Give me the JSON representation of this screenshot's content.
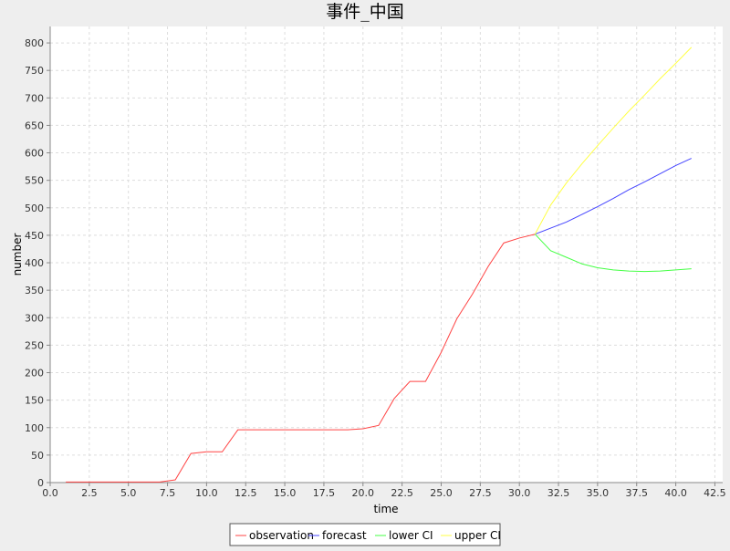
{
  "chart_data": {
    "type": "line",
    "title": "事件_中国",
    "xlabel": "time",
    "ylabel": "number",
    "xlim": [
      0,
      43
    ],
    "ylim": [
      0,
      830
    ],
    "xticks": [
      "0.0",
      "2.5",
      "5.0",
      "7.5",
      "10.0",
      "12.5",
      "15.0",
      "17.5",
      "20.0",
      "22.5",
      "25.0",
      "27.5",
      "30.0",
      "32.5",
      "35.0",
      "37.5",
      "40.0",
      "42.5"
    ],
    "yticks": [
      "0",
      "50",
      "100",
      "150",
      "200",
      "250",
      "300",
      "350",
      "400",
      "450",
      "500",
      "550",
      "600",
      "650",
      "700",
      "750",
      "800"
    ],
    "grid": true,
    "legend_position": "bottom",
    "series": [
      {
        "name": "observation",
        "color": "#ff4444",
        "x": [
          1,
          2,
          3,
          4,
          5,
          6,
          7,
          8,
          9,
          10,
          11,
          12,
          13,
          14,
          15,
          16,
          17,
          18,
          19,
          20,
          21,
          22,
          23,
          24,
          25,
          26,
          27,
          28,
          29,
          30,
          31
        ],
        "y": [
          1,
          1,
          1,
          1,
          1,
          1,
          1,
          5,
          53,
          56,
          56,
          96,
          96,
          96,
          96,
          96,
          96,
          96,
          96,
          98,
          104,
          153,
          184,
          184,
          237,
          298,
          343,
          393,
          436,
          445,
          452
        ]
      },
      {
        "name": "forecast",
        "color": "#4444ff",
        "x": [
          31,
          32,
          33,
          34,
          35,
          36,
          37,
          38,
          39,
          40,
          41
        ],
        "y": [
          452,
          463,
          474,
          488,
          502,
          517,
          533,
          547,
          562,
          577,
          590
        ]
      },
      {
        "name": "lower CI",
        "color": "#44ff44",
        "x": [
          31,
          32,
          33,
          34,
          35,
          36,
          37,
          38,
          39,
          40,
          41
        ],
        "y": [
          452,
          422,
          410,
          398,
          391,
          387,
          385,
          384,
          385,
          387,
          389
        ]
      },
      {
        "name": "upper CI",
        "color": "#ffff44",
        "x": [
          31,
          32,
          33,
          34,
          35,
          36,
          37,
          38,
          39,
          40,
          41
        ],
        "y": [
          452,
          505,
          545,
          580,
          613,
          645,
          676,
          705,
          735,
          763,
          792
        ]
      }
    ]
  }
}
